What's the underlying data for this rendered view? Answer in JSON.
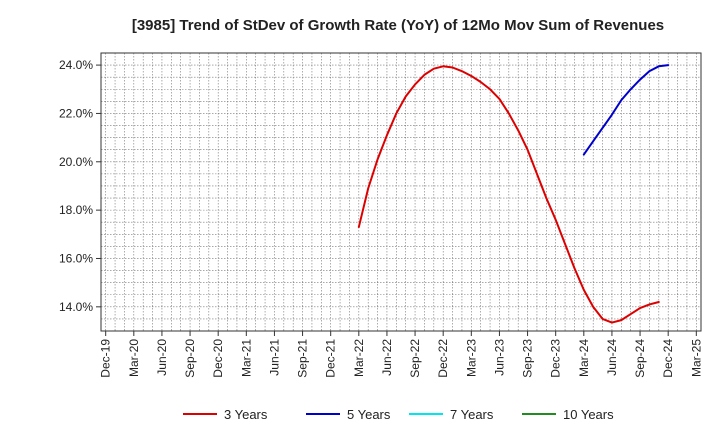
{
  "chart_data": {
    "type": "line",
    "title": "[3985]  Trend of StDev of Growth Rate (YoY) of 12Mo Mov Sum of Revenues",
    "xlabel": "",
    "ylabel": "",
    "ylim": [
      13.0,
      24.5
    ],
    "yticks": [
      14,
      16,
      18,
      20,
      22,
      24
    ],
    "ytick_labels": [
      "14.0%",
      "16.0%",
      "18.0%",
      "20.0%",
      "22.0%",
      "24.0%"
    ],
    "x_tick_labels": [
      "Dec-19",
      "Mar-20",
      "Jun-20",
      "Sep-20",
      "Dec-20",
      "Mar-21",
      "Jun-21",
      "Sep-21",
      "Dec-21",
      "Mar-22",
      "Jun-22",
      "Sep-22",
      "Dec-22",
      "Mar-23",
      "Jun-23",
      "Sep-23",
      "Dec-23",
      "Mar-24",
      "Jun-24",
      "Sep-24",
      "Dec-24",
      "Mar-25"
    ],
    "grid": true,
    "legend_position": "bottom",
    "series": [
      {
        "name": "3 Years",
        "color": "#dd0000",
        "start_index": 27,
        "values": [
          17.3,
          18.9,
          20.1,
          21.1,
          22.0,
          22.7,
          23.2,
          23.6,
          23.85,
          23.95,
          23.9,
          23.75,
          23.55,
          23.3,
          23.0,
          22.6,
          22.0,
          21.3,
          20.5,
          19.5,
          18.5,
          17.6,
          16.6,
          15.6,
          14.7,
          14.0,
          13.5,
          13.35,
          13.45,
          13.7,
          13.95,
          14.1,
          14.2
        ]
      },
      {
        "name": "5 Years",
        "color": "#0000cc",
        "start_index": 51,
        "values": [
          20.3,
          20.85,
          21.4,
          21.95,
          22.55,
          23.0,
          23.4,
          23.75,
          23.95,
          24.0
        ]
      },
      {
        "name": "7 Years",
        "color": "#00e5ee",
        "start_index": 0,
        "values": []
      },
      {
        "name": "10 Years",
        "color": "#228b22",
        "start_index": 0,
        "values": []
      }
    ]
  }
}
